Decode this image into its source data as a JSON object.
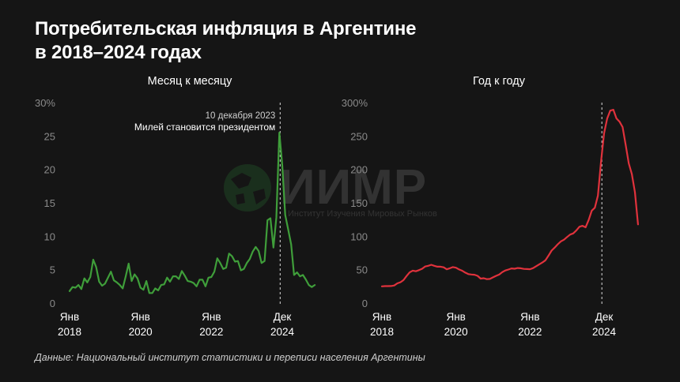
{
  "title_line1": "Потребительская инфляция в Аргентине",
  "title_line2": "в 2018–2024 годах",
  "source": "Данные: Национальный институт статистики и переписи населения Аргентины",
  "watermark": {
    "name": "ИИМР",
    "subtitle": "Институт Изучения Мировых Рынков"
  },
  "colors": {
    "background": "#151515",
    "monthly_line": "#3f9e3a",
    "yearly_line": "#e0323c",
    "axis_text": "#8a8a8a",
    "grid": "#262626"
  },
  "chart_data": [
    {
      "type": "line",
      "title": "Месяц к месяцу",
      "ylim": [
        0,
        30
      ],
      "y_ticks": [
        "30%",
        "25",
        "20",
        "15",
        "10",
        "5",
        "0"
      ],
      "x_ticks": [
        {
          "label1": "Янв",
          "label2": "2018",
          "x": 2018.0
        },
        {
          "label1": "Янв",
          "label2": "2020",
          "x": 2020.0
        },
        {
          "label1": "Янв",
          "label2": "2022",
          "x": 2022.0
        },
        {
          "label1": "Дек",
          "label2": "2024",
          "x": 2024.0
        }
      ],
      "x_range": [
        2018.0,
        2024.75
      ],
      "grid": false,
      "annotation": {
        "x": 2023.94,
        "date": "10 декабря 2023",
        "text": "Милей становится президентом"
      },
      "series": [
        {
          "name": "",
          "x_start": 2018.0,
          "x_step": 0.08333,
          "values": [
            1.8,
            2.4,
            2.3,
            2.7,
            2.1,
            3.7,
            3.1,
            3.9,
            6.5,
            5.4,
            3.2,
            2.6,
            2.9,
            3.8,
            4.7,
            3.4,
            3.1,
            2.7,
            2.2,
            4.0,
            5.9,
            3.3,
            4.3,
            3.7,
            2.3,
            2.0,
            3.3,
            1.5,
            1.5,
            2.2,
            1.9,
            2.7,
            2.8,
            3.8,
            3.2,
            4.0,
            4.0,
            3.6,
            4.8,
            4.1,
            3.3,
            3.2,
            3.0,
            2.5,
            3.5,
            3.5,
            2.5,
            3.8,
            3.9,
            4.7,
            6.7,
            6.0,
            5.1,
            5.3,
            7.4,
            7.0,
            6.2,
            6.3,
            4.9,
            5.1,
            6.0,
            6.6,
            7.7,
            8.4,
            7.8,
            6.0,
            6.3,
            12.4,
            12.7,
            8.3,
            12.8,
            25.5,
            20.6,
            13.2,
            11.0,
            8.8,
            4.2,
            4.6,
            4.0,
            4.2,
            3.5,
            2.7,
            2.4,
            2.7
          ],
          "color": "#3f9e3a"
        }
      ]
    },
    {
      "type": "line",
      "title": "Год к году",
      "ylim": [
        0,
        300
      ],
      "y_ticks": [
        "300%",
        "250",
        "200",
        "150",
        "100",
        "50",
        "0"
      ],
      "x_ticks": [
        {
          "label1": "Янв",
          "label2": "2018",
          "x": 2018.0
        },
        {
          "label1": "Янв",
          "label2": "2020",
          "x": 2020.0
        },
        {
          "label1": "Янв",
          "label2": "2022",
          "x": 2022.0
        },
        {
          "label1": "Дек",
          "label2": "2024",
          "x": 2024.0
        }
      ],
      "x_range": [
        2018.0,
        2024.75
      ],
      "grid": false,
      "marker_x": 2023.94,
      "series": [
        {
          "name": "",
          "x_start": 2018.0,
          "x_step": 0.08333,
          "values": [
            25,
            25.4,
            25.4,
            25.5,
            26.3,
            29.5,
            31.2,
            34.4,
            40.5,
            45.9,
            48.5,
            47.6,
            49.3,
            51.3,
            54.7,
            55.8,
            57.3,
            55.8,
            54.4,
            54.5,
            53.5,
            50.5,
            52.1,
            53.8,
            52.9,
            50.3,
            48.4,
            45.6,
            43.4,
            42.8,
            42.4,
            40.7,
            36.6,
            37.2,
            35.8,
            36.1,
            38.5,
            40.7,
            42.6,
            46.3,
            48.8,
            50.2,
            51.8,
            51.4,
            52.5,
            52.1,
            51.2,
            50.9,
            50.7,
            52.3,
            55.1,
            58.0,
            60.7,
            64.0,
            71.0,
            78.5,
            83.0,
            88.0,
            92.4,
            94.8,
            98.8,
            102.5,
            104.3,
            108.8,
            114.2,
            115.6,
            113.4,
            124.4,
            138.3,
            142.7,
            160.9,
            211.4,
            254.2,
            276.2,
            287.9,
            289.4,
            276.4,
            271.5,
            263.4,
            236.7,
            209.0,
            193.0,
            166.0,
            117.8
          ],
          "color": "#e0323c"
        }
      ]
    }
  ]
}
